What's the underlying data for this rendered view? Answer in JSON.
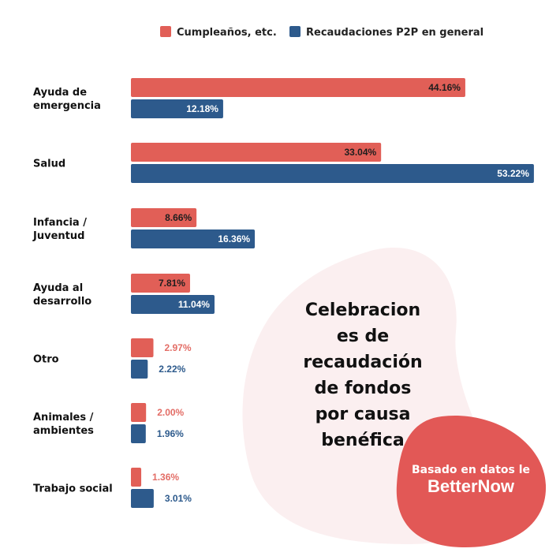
{
  "colors": {
    "red": "#e15f57",
    "blue": "#2d5a8c",
    "blob": "#fbeff0",
    "badge": "#e25856"
  },
  "title_lines": [
    "Celebracion",
    "es de",
    "recaudación",
    "de fondos",
    "por causa",
    "benéfica"
  ],
  "badge": {
    "line1": "Basado en datos le",
    "logo": "BetterNow"
  },
  "chart_data": {
    "type": "bar",
    "orientation": "horizontal",
    "categories": [
      [
        "Ayuda de",
        "emergencia"
      ],
      [
        "Salud"
      ],
      [
        "Infancia /",
        "Juventud"
      ],
      [
        "Ayuda al",
        "desarrollo"
      ],
      [
        "Otro"
      ],
      [
        "Animales /",
        "ambientes"
      ],
      [
        "Trabajo social"
      ]
    ],
    "series": [
      {
        "name": "Cumpleaños, etc.",
        "values": [
          44.16,
          33.04,
          8.66,
          7.81,
          2.97,
          2.0,
          1.36
        ],
        "labels": [
          "44.16%",
          "33.04%",
          "8.66%",
          "7.81%",
          "2.97%",
          "2.00%",
          "1.36%"
        ]
      },
      {
        "name": "Recaudaciones P2P en general",
        "values": [
          12.18,
          53.22,
          16.36,
          11.04,
          2.22,
          1.96,
          3.01
        ],
        "labels": [
          "12.18%",
          "53.22%",
          "16.36%",
          "11.04%",
          "2.22%",
          "1.96%",
          "3.01%"
        ]
      }
    ],
    "legend_position": "top-center",
    "grid": false
  }
}
